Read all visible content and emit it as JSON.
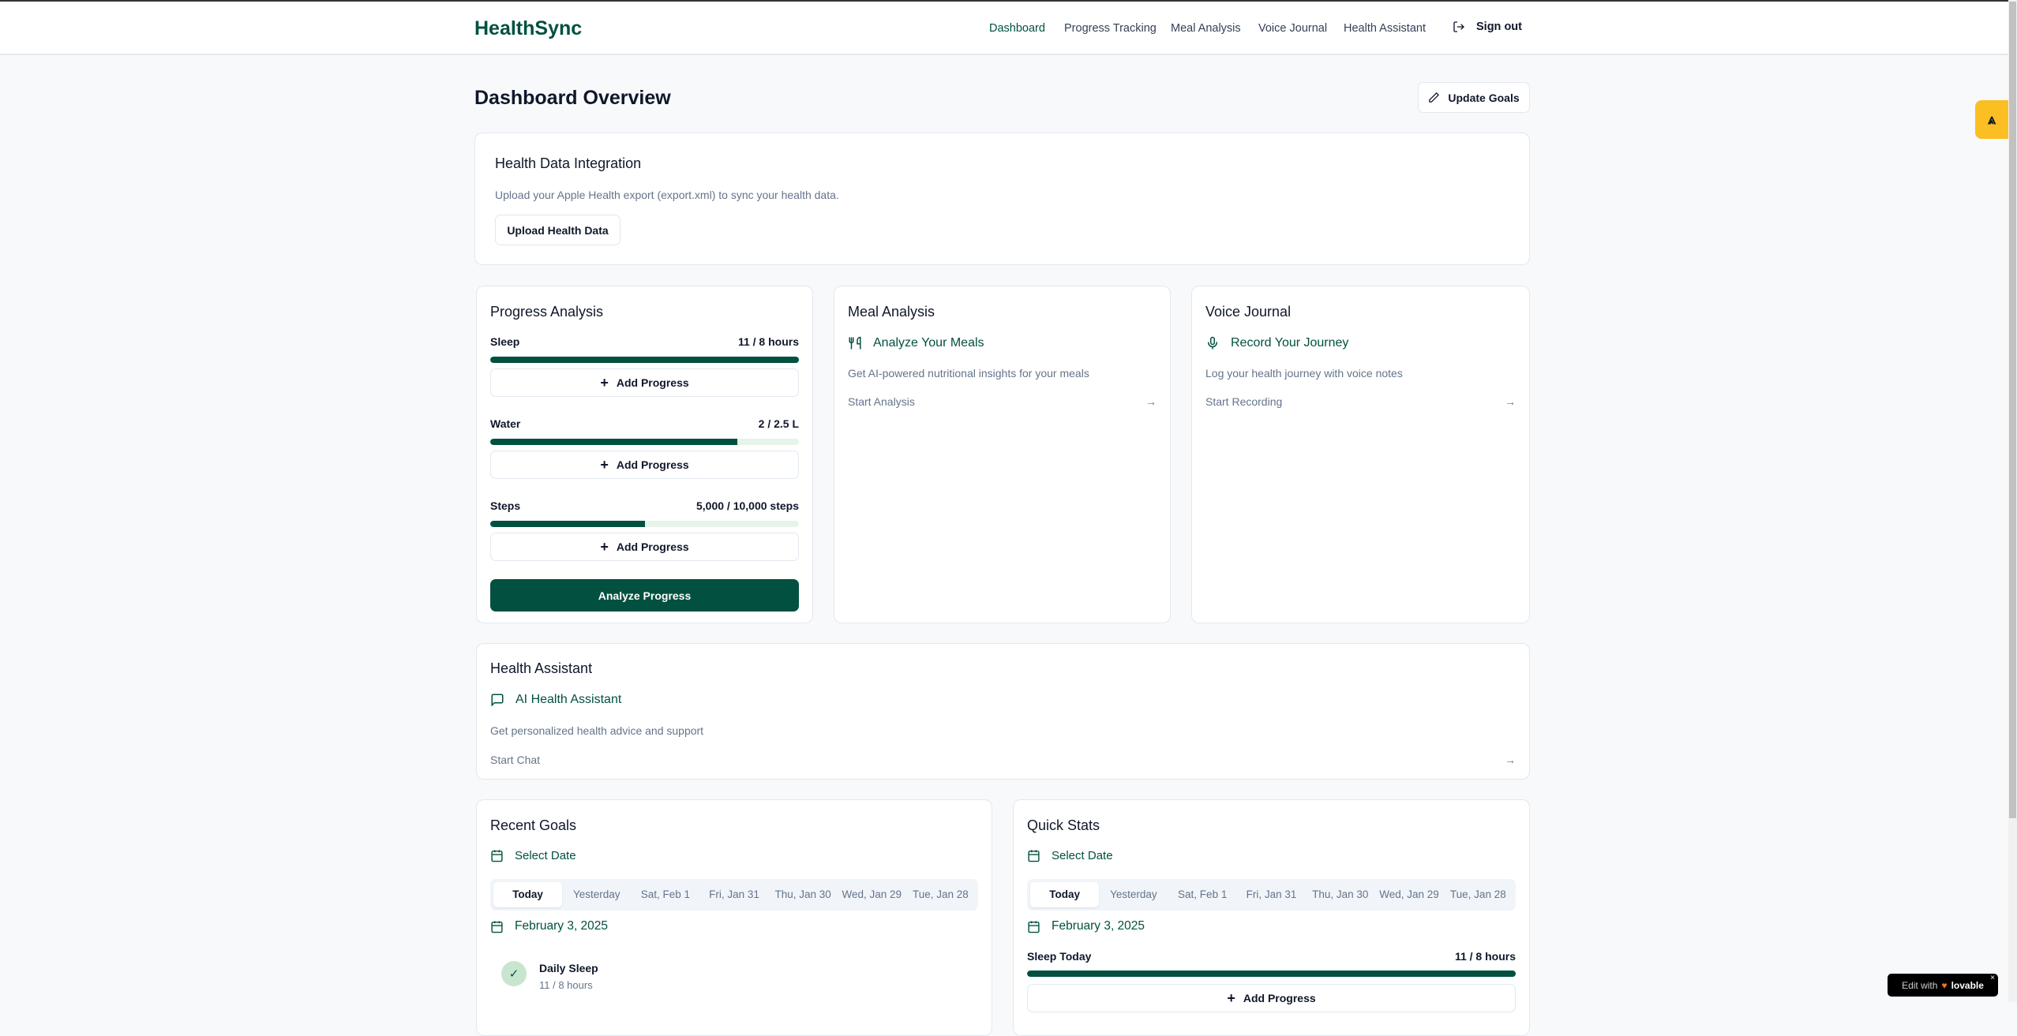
{
  "header": {
    "logo": "HealthSync",
    "nav": [
      "Dashboard",
      "Progress Tracking",
      "Meal Analysis",
      "Voice Journal",
      "Health Assistant"
    ],
    "sign_out": "Sign out"
  },
  "page": {
    "title": "Dashboard Overview",
    "update_goals": "Update Goals"
  },
  "integration": {
    "title": "Health Data Integration",
    "desc": "Upload your Apple Health export (export.xml) to sync your health data.",
    "button": "Upload Health Data"
  },
  "progress": {
    "title": "Progress Analysis",
    "items": [
      {
        "label": "Sleep",
        "value": "11 / 8 hours",
        "percent": 100
      },
      {
        "label": "Water",
        "value": "2 / 2.5 L",
        "percent": 80
      },
      {
        "label": "Steps",
        "value": "5,000 / 10,000 steps",
        "percent": 50
      }
    ],
    "add": "Add Progress",
    "analyze": "Analyze Progress"
  },
  "meal": {
    "title": "Meal Analysis",
    "feature": "Analyze Your Meals",
    "desc": "Get AI-powered nutritional insights for your meals",
    "link": "Start Analysis"
  },
  "voice": {
    "title": "Voice Journal",
    "feature": "Record Your Journey",
    "desc": "Log your health journey with voice notes",
    "link": "Start Recording"
  },
  "assistant": {
    "title": "Health Assistant",
    "feature": "AI Health Assistant",
    "desc": "Get personalized health advice and support",
    "link": "Start Chat"
  },
  "recent": {
    "title": "Recent Goals",
    "select": "Select Date",
    "tabs": [
      "Today",
      "Yesterday",
      "Sat, Feb 1",
      "Fri, Jan 31",
      "Thu, Jan 30",
      "Wed, Jan 29",
      "Tue, Jan 28"
    ],
    "date": "February 3, 2025",
    "goal": {
      "name": "Daily Sleep",
      "value": "11 / 8 hours"
    }
  },
  "quick": {
    "title": "Quick Stats",
    "select": "Select Date",
    "tabs": [
      "Today",
      "Yesterday",
      "Sat, Feb 1",
      "Fri, Jan 31",
      "Thu, Jan 30",
      "Wed, Jan 29",
      "Tue, Jan 28"
    ],
    "date": "February 3, 2025",
    "stat": {
      "label": "Sleep Today",
      "value": "11 / 8 hours",
      "percent": 100
    },
    "add": "Add Progress"
  },
  "badge": {
    "text": "Edit with",
    "brand": "lovable"
  },
  "colors": {
    "primary": "#02503f",
    "track": "#e6f4ea",
    "floating": "#fbbf24"
  }
}
